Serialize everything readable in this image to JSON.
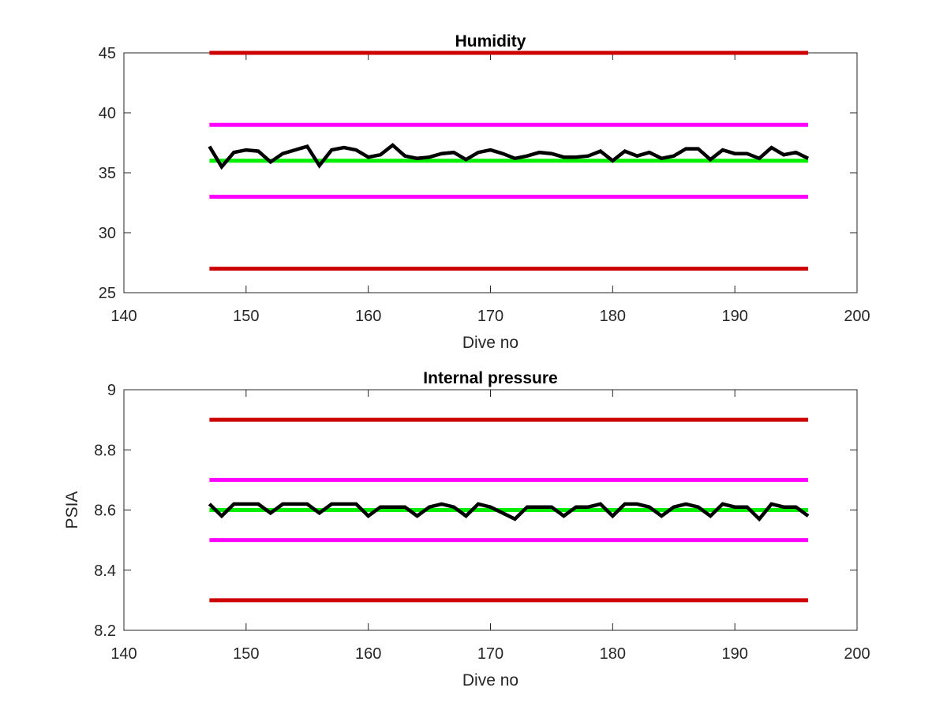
{
  "chart_data": [
    {
      "type": "line",
      "title": "Humidity",
      "xlabel": "Dive no",
      "ylabel": "",
      "xlim": [
        140,
        200
      ],
      "ylim": [
        25,
        45
      ],
      "xticks": [
        140,
        150,
        160,
        170,
        180,
        190,
        200
      ],
      "yticks": [
        25,
        30,
        35,
        40,
        45
      ],
      "xtick_labels": [
        "140",
        "150",
        "160",
        "170",
        "180",
        "190",
        "200"
      ],
      "ytick_labels": [
        "25",
        "30",
        "35",
        "40",
        "45"
      ],
      "grid": false,
      "series": [
        {
          "color": "#cc0000",
          "x": [
            147,
            196
          ],
          "y": [
            45,
            45
          ]
        },
        {
          "color": "#ff00ff",
          "x": [
            147,
            196
          ],
          "y": [
            39,
            39
          ]
        },
        {
          "color": "#00ee00",
          "x": [
            147,
            196
          ],
          "y": [
            36,
            36
          ]
        },
        {
          "color": "#ff00ff",
          "x": [
            147,
            196
          ],
          "y": [
            33,
            33
          ]
        },
        {
          "color": "#cc0000",
          "x": [
            147,
            196
          ],
          "y": [
            27,
            27
          ]
        },
        {
          "color": "#000000",
          "x": [
            147,
            148,
            149,
            150,
            151,
            152,
            153,
            154,
            155,
            156,
            157,
            158,
            159,
            160,
            161,
            162,
            163,
            164,
            165,
            166,
            167,
            168,
            169,
            170,
            171,
            172,
            173,
            174,
            175,
            176,
            177,
            178,
            179,
            180,
            181,
            182,
            183,
            184,
            185,
            186,
            187,
            188,
            189,
            190,
            191,
            192,
            193,
            194,
            195,
            196
          ],
          "y": [
            37.2,
            35.5,
            36.7,
            36.9,
            36.8,
            35.9,
            36.6,
            36.9,
            37.2,
            35.6,
            36.9,
            37.1,
            36.9,
            36.3,
            36.5,
            37.3,
            36.4,
            36.2,
            36.3,
            36.6,
            36.7,
            36.1,
            36.7,
            36.9,
            36.6,
            36.2,
            36.4,
            36.7,
            36.6,
            36.3,
            36.3,
            36.4,
            36.8,
            36.0,
            36.8,
            36.4,
            36.7,
            36.2,
            36.4,
            37.0,
            37.0,
            36.1,
            36.9,
            36.6,
            36.6,
            36.2,
            37.1,
            36.5,
            36.7,
            36.2
          ]
        }
      ]
    },
    {
      "type": "line",
      "title": "Internal pressure",
      "xlabel": "Dive no",
      "ylabel": "PSIA",
      "xlim": [
        140,
        200
      ],
      "ylim": [
        8.2,
        9
      ],
      "xticks": [
        140,
        150,
        160,
        170,
        180,
        190,
        200
      ],
      "yticks": [
        8.2,
        8.4,
        8.6,
        8.8,
        9
      ],
      "xtick_labels": [
        "140",
        "150",
        "160",
        "170",
        "180",
        "190",
        "200"
      ],
      "ytick_labels": [
        "8.2",
        "8.4",
        "8.6",
        "8.8",
        "9"
      ],
      "grid": false,
      "series": [
        {
          "color": "#cc0000",
          "x": [
            147,
            196
          ],
          "y": [
            8.9,
            8.9
          ]
        },
        {
          "color": "#ff00ff",
          "x": [
            147,
            196
          ],
          "y": [
            8.7,
            8.7
          ]
        },
        {
          "color": "#00ee00",
          "x": [
            147,
            196
          ],
          "y": [
            8.6,
            8.6
          ]
        },
        {
          "color": "#ff00ff",
          "x": [
            147,
            196
          ],
          "y": [
            8.5,
            8.5
          ]
        },
        {
          "color": "#cc0000",
          "x": [
            147,
            196
          ],
          "y": [
            8.3,
            8.3
          ]
        },
        {
          "color": "#000000",
          "x": [
            147,
            148,
            149,
            150,
            151,
            152,
            153,
            154,
            155,
            156,
            157,
            158,
            159,
            160,
            161,
            162,
            163,
            164,
            165,
            166,
            167,
            168,
            169,
            170,
            171,
            172,
            173,
            174,
            175,
            176,
            177,
            178,
            179,
            180,
            181,
            182,
            183,
            184,
            185,
            186,
            187,
            188,
            189,
            190,
            191,
            192,
            193,
            194,
            195,
            196
          ],
          "y": [
            8.62,
            8.58,
            8.62,
            8.62,
            8.62,
            8.59,
            8.62,
            8.62,
            8.62,
            8.59,
            8.62,
            8.62,
            8.62,
            8.58,
            8.61,
            8.61,
            8.61,
            8.58,
            8.61,
            8.62,
            8.61,
            8.58,
            8.62,
            8.61,
            8.59,
            8.57,
            8.61,
            8.61,
            8.61,
            8.58,
            8.61,
            8.61,
            8.62,
            8.58,
            8.62,
            8.62,
            8.61,
            8.58,
            8.61,
            8.62,
            8.61,
            8.58,
            8.62,
            8.61,
            8.61,
            8.57,
            8.62,
            8.61,
            8.61,
            8.58
          ]
        }
      ]
    }
  ]
}
